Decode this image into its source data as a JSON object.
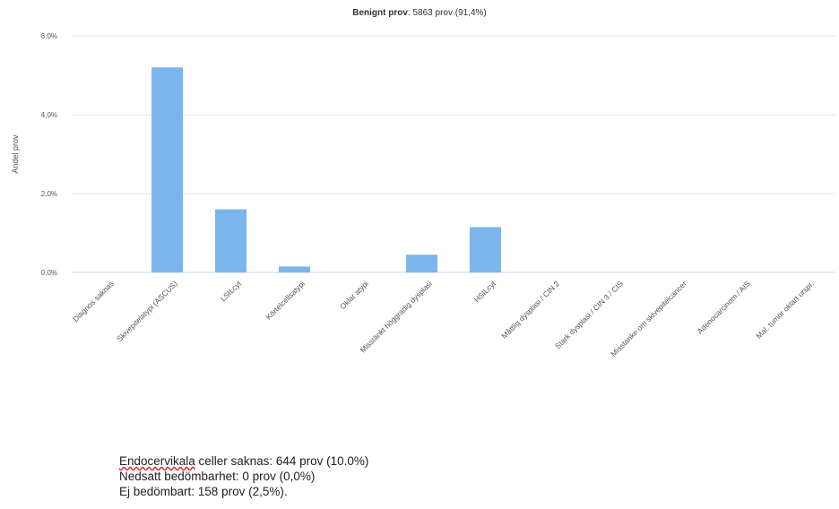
{
  "chart_data": {
    "type": "bar",
    "title_bold": "Benignt prov",
    "title_rest": ": 5863 prov (91,4%)",
    "ylabel": "Andel prov",
    "xlabel": "",
    "ylim": [
      0,
      6
    ],
    "yticks": [
      {
        "value": 0,
        "label": "0,0%"
      },
      {
        "value": 2,
        "label": "2,0%"
      },
      {
        "value": 4,
        "label": "4,0%"
      },
      {
        "value": 6,
        "label": "6,0%"
      }
    ],
    "grid": true,
    "color": "#7cb5ec",
    "categories": [
      "Diagnos saknas",
      "Skivepitelatypi (ASCUS)",
      "LSILcyt",
      "Körtelcellsatypi",
      "Oklar atypi",
      "Misstänkt höggradig dysplasi",
      "HSILcyt",
      "Måttlig dysplasi / CIN 2",
      "Stark dysplasi / CIN 3 / CIS",
      "Misstanke om skivepitelcancer",
      "Adenocarcinom / AIS",
      "Mal. tumör oklart urspr."
    ],
    "values": [
      0.0,
      5.2,
      1.6,
      0.15,
      0.0,
      0.45,
      1.15,
      0.0,
      0.0,
      0.0,
      0.0,
      0.0
    ]
  },
  "notes": {
    "line1_word": "Endocervikala",
    "line1_rest": " celler saknas: 644 prov (10.0%)",
    "line2": "Nedsatt bedömbarhet: 0 prov (0,0%)",
    "line3": "Ej bedömbart: 158 prov (2,5%)."
  }
}
